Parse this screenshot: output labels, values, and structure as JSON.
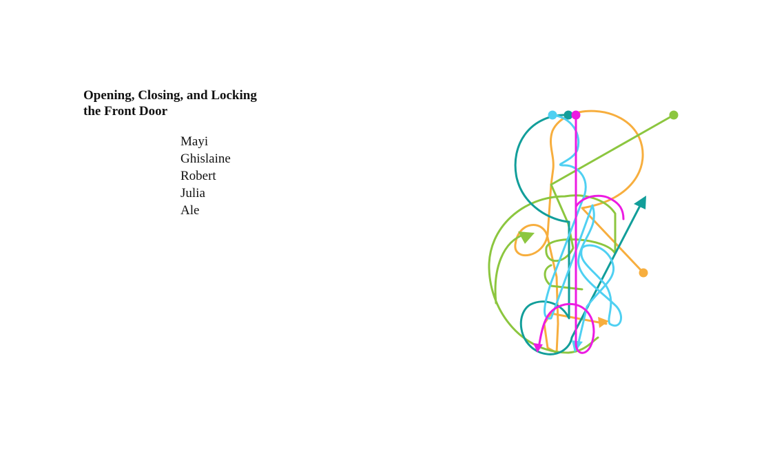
{
  "title": {
    "line1": "Opening, Closing, and Locking",
    "line2": "the Front Door"
  },
  "people": [
    "Mayi",
    "Ghislaine",
    "Robert",
    "Julia",
    "Ale"
  ],
  "colors": {
    "orange": "#F7AE3E",
    "lime": "#8CC63F",
    "teal": "#129E9A",
    "sky": "#4FD0F2",
    "magenta": "#EC1BE2"
  }
}
